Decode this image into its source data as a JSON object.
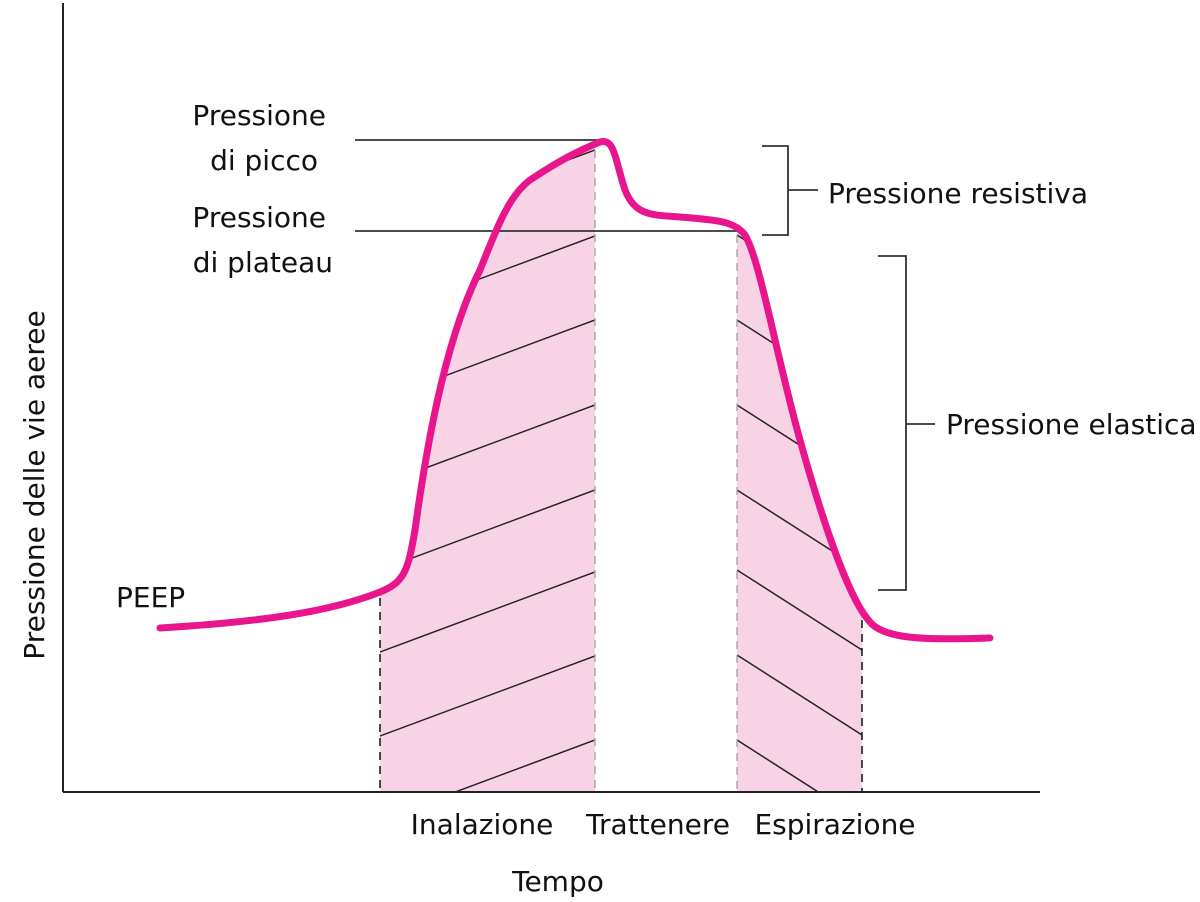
{
  "axes": {
    "y_label": "Pressione delle vie aeree",
    "x_label": "Tempo"
  },
  "phases": [
    "Inalazione",
    "Trattenere",
    "Espirazione"
  ],
  "labels": {
    "peep": "PEEP",
    "peak": [
      "Pressione",
      "di picco"
    ],
    "plateau": [
      "Pressione",
      "di plateau"
    ],
    "resistive": "Pressione resistiva",
    "elastic": "Pressione elastica"
  }
}
